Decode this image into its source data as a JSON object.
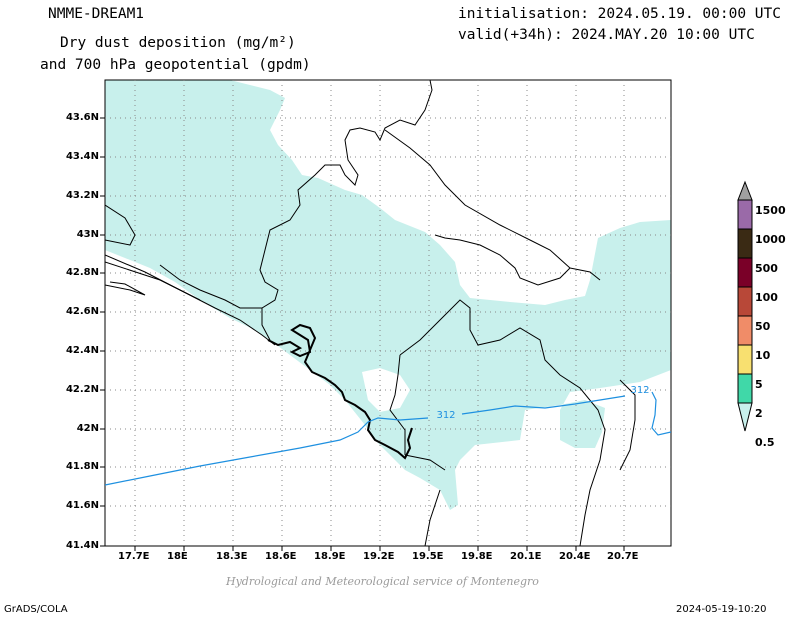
{
  "header": {
    "model": "NMME-DREAM1",
    "title_line1": "Dry dust deposition (mg/m²)",
    "title_line2": "and 700 hPa geopotential (gpdm)",
    "init": "initialisation: 2024.05.19. 00:00 UTC",
    "valid": "valid(+34h): 2024.MAY.20 10:00 UTC"
  },
  "axes": {
    "lat_labels": [
      "43.6N",
      "43.4N",
      "43.2N",
      "43N",
      "42.8N",
      "42.6N",
      "42.4N",
      "42.2N",
      "42N",
      "41.8N",
      "41.6N",
      "41.4N"
    ],
    "lon_labels": [
      "17.7E",
      "18E",
      "18.3E",
      "18.6E",
      "18.9E",
      "19.2E",
      "19.5E",
      "19.8E",
      "20.1E",
      "20.4E",
      "20.7E"
    ]
  },
  "contour": {
    "label": "312",
    "color": "#1e90e0"
  },
  "legend": {
    "labels": [
      "1500",
      "1000",
      "500",
      "100",
      "50",
      "10",
      "5",
      "2",
      "0.5"
    ],
    "colors": [
      "#a0a0a0",
      "#9a6aa8",
      "#3a2a14",
      "#7a0028",
      "#b84838",
      "#f08c68",
      "#f8e070",
      "#40d8a8",
      "#c8f0ec"
    ]
  },
  "colors": {
    "dust_fill": "#c8f0ec",
    "frame": "#000000",
    "grid": "#888888"
  },
  "footer": {
    "credit": "Hydrological and Meteorological service of Montenegro",
    "left": "GrADS/COLA",
    "right": "2024-05-19-10:20"
  }
}
